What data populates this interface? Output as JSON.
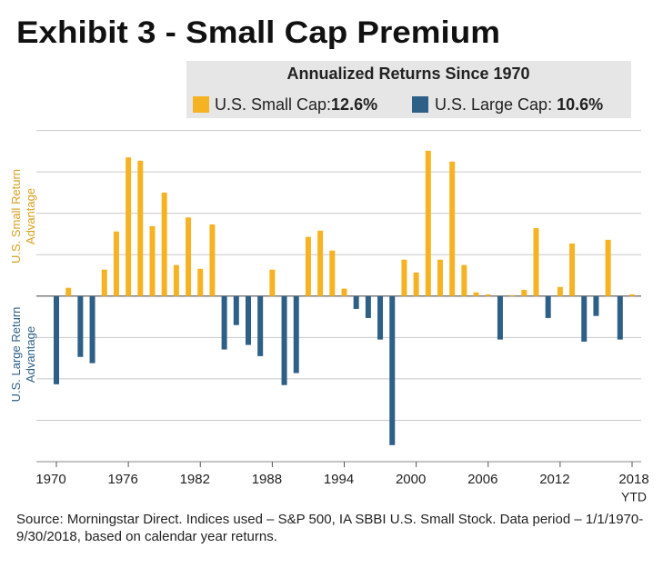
{
  "chart_data": {
    "type": "bar",
    "title": "Exhibit 3 - Small Cap Premium",
    "legend_title": "Annualized Returns Since 1970",
    "series": [
      {
        "name": "U.S. Small Cap:",
        "name_value": "12.6%",
        "color": "#f5b324"
      },
      {
        "name": "U.S. Large Cap:",
        "name_value": "10.6%",
        "color": "#2e5f86"
      }
    ],
    "y_label_positive": "U.S. Small Return Advantage",
    "y_label_negative": "U.S. Large Return Advantage",
    "categories": [
      "1970",
      null,
      null,
      null,
      null,
      null,
      "1976",
      null,
      null,
      null,
      null,
      null,
      "1982",
      null,
      null,
      null,
      null,
      null,
      "1988",
      null,
      null,
      null,
      null,
      null,
      "1994",
      null,
      null,
      null,
      null,
      null,
      "2000",
      null,
      null,
      null,
      null,
      null,
      "2006",
      null,
      null,
      null,
      null,
      null,
      "2012",
      null,
      null,
      null,
      null,
      null,
      "2018"
    ],
    "last_category_note": "YTD",
    "values": [
      -21.3,
      2,
      -14.7,
      -16.2,
      6.4,
      15.6,
      33.5,
      32.7,
      16.9,
      25,
      7.5,
      19,
      6.6,
      17.3,
      -12.9,
      -7,
      -11.8,
      -14.5,
      6.4,
      -21.5,
      -18.6,
      14.3,
      15.8,
      11,
      1.8,
      -3.1,
      -5.3,
      -10.5,
      -36,
      8.8,
      5.7,
      35.1,
      8.8,
      32.5,
      7.5,
      0.9,
      0.4,
      -10.5,
      0.2,
      1.5,
      16.4,
      -5.3,
      2.2,
      12.7,
      -11,
      -4.8,
      13.6,
      -10.5,
      0.4
    ],
    "ylim": [
      -40,
      40
    ],
    "yticks": [
      -40,
      -30,
      -20,
      -10,
      0,
      10,
      20,
      30,
      40
    ],
    "grid": true,
    "source": "Source: Morningstar Direct. Indices used – S&P 500, IA SBBI U.S. Small Stock. Data period – 1/1/1970-9/30/2018, based on calendar year returns."
  }
}
